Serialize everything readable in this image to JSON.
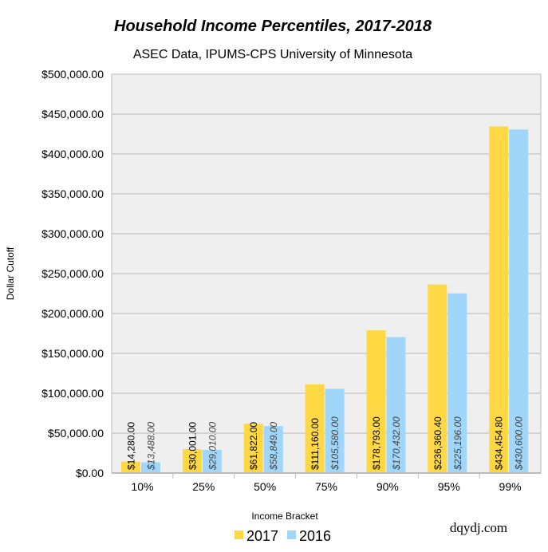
{
  "chart_data": {
    "type": "bar",
    "title": "Household Income Percentiles, 2017-2018",
    "subtitle": "ASEC Data, IPUMS-CPS University of Minnesota",
    "xlabel": "Income Bracket",
    "ylabel": "Dollar Cutoff",
    "ylim": [
      0,
      500000
    ],
    "yticks": [
      0,
      50000,
      100000,
      150000,
      200000,
      250000,
      300000,
      350000,
      400000,
      450000,
      500000
    ],
    "ytick_labels": [
      "$0.00",
      "$50,000.00",
      "$100,000.00",
      "$150,000.00",
      "$200,000.00",
      "$250,000.00",
      "$300,000.00",
      "$350,000.00",
      "$400,000.00",
      "$450,000.00",
      "$500,000.00"
    ],
    "categories": [
      "10%",
      "25%",
      "50%",
      "75%",
      "90%",
      "95%",
      "99%"
    ],
    "grid": true,
    "legend": "bottom",
    "series": [
      {
        "name": "2017",
        "color": "#FFD843",
        "values": [
          14280,
          30001,
          61822,
          111160,
          178793,
          236360.4,
          434454.8
        ],
        "labels": [
          "$14,280.00",
          "$30,001.00",
          "$61,822.00",
          "$111,160.00",
          "$178,793.00",
          "$236,360.40",
          "$434,454.80"
        ]
      },
      {
        "name": "2016",
        "color": "#A0D6FA",
        "values": [
          13488,
          29010,
          58849,
          105580,
          170432,
          225196,
          430600
        ],
        "labels": [
          "$13,488.00",
          "$29,010.00",
          "$58,849.00",
          "$105,580.00",
          "$170,432.00",
          "$225,196.00",
          "$430,600.00"
        ]
      }
    ],
    "watermark": "dqydj.com"
  }
}
